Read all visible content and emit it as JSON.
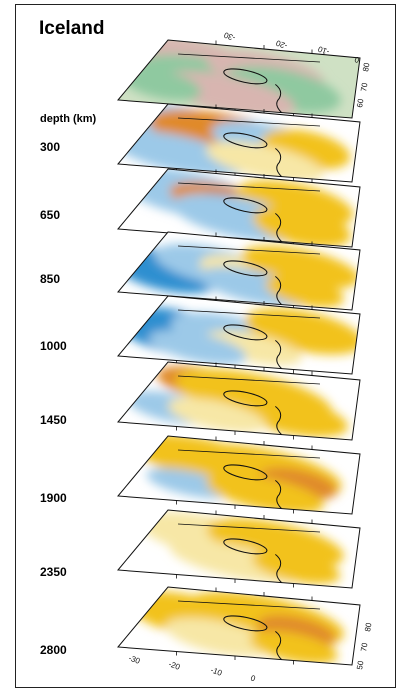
{
  "title": "Iceland",
  "depth_header": "depth (km)",
  "top_axis_labels": [
    "-30",
    "-20",
    "-10",
    "0"
  ],
  "top_lat_labels": [
    "80",
    "70",
    "60"
  ],
  "bottom_axis_labels": [
    "-30",
    "-20",
    "-10",
    "0"
  ],
  "bottom_lat_labels": [
    "80",
    "70",
    "50"
  ],
  "colors": {
    "deep_red": "#7a2a16",
    "orange": "#e08a2a",
    "yellow": "#f2c21b",
    "pale_yellow": "#f7e7a6",
    "light_blue": "#9cc9e8",
    "blue": "#2f8fd0",
    "topo_green": "#8fc9a0",
    "topo_pink": "#d8b5b0"
  },
  "slices": [
    {
      "depth": "",
      "kind": "topography"
    },
    {
      "depth": "300"
    },
    {
      "depth": "650"
    },
    {
      "depth": "850"
    },
    {
      "depth": "1000"
    },
    {
      "depth": "1450"
    },
    {
      "depth": "1900"
    },
    {
      "depth": "2350"
    },
    {
      "depth": "2800"
    }
  ]
}
